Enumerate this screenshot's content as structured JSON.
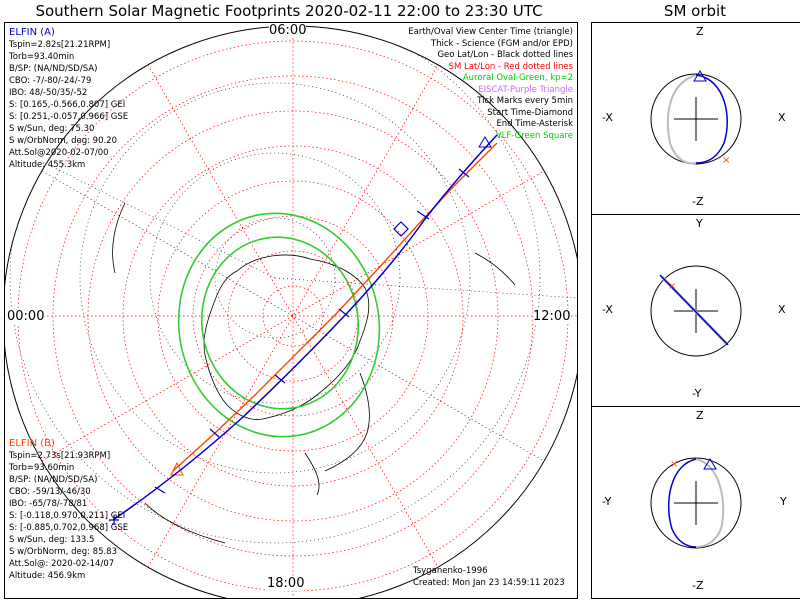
{
  "title": "Southern Solar Magnetic Footprints 2020-02-11 22:00 to 23:30 UTC",
  "sm_title": "SM orbit",
  "time_labels": {
    "top": "06:00",
    "left": "00:00",
    "right": "12:00",
    "bottom": "18:00"
  },
  "legend": [
    {
      "text": "Earth/Oval View Center Time (triangle)",
      "color": "#000000"
    },
    {
      "text": "Thick - Science (FGM and/or EPD)",
      "color": "#000000"
    },
    {
      "text": "Geo Lat/Lon - Black dotted lines",
      "color": "#000000"
    },
    {
      "text": "SM Lat/Lon - Red dotted lines",
      "color": "#ff0000"
    },
    {
      "text": "Auroral Oval-Green, kp=2",
      "color": "#00cc00"
    },
    {
      "text": "EISCAT-Purple Triangle",
      "color": "#cc66ff"
    },
    {
      "text": "Tick Marks every 5min",
      "color": "#000000"
    },
    {
      "text": "Start Time-Diamond",
      "color": "#000000"
    },
    {
      "text": "End Time-Asterisk",
      "color": "#000000"
    },
    {
      "text": "VLF-Green Square",
      "color": "#00cc00"
    }
  ],
  "elfin_a": {
    "name": "ELFIN (A)",
    "lines": [
      "Tspin=2.82s[21.21RPM]",
      "Torb=93.40min",
      "B/SP: (NA/ND/SD/SA)",
      "CBO: -7/-80/-24/-79",
      "IBO: 48/-50/35/-52",
      "S: [0.165,-0.566,0.807] GEI",
      "S: [0.251,-0.057,0.966] GSE",
      "S w/Sun, deg: 75.30",
      "S w/OrbNorm, deg: 90.20",
      "Att.Sol@2020-02-07/00",
      "Altitude: 455.3km"
    ]
  },
  "elfin_b": {
    "name": "ELFIN (B)",
    "lines": [
      "Tspin=2.73s[21.93RPM]",
      "Torb=93.60min",
      "B/SP: (NA/ND/SD/SA)",
      "CBO: -59/13/-46/30",
      "IBO: -65/78/-78/81",
      "S: [-0.118,0.970,0.211] GEI",
      "S: [-0.885,0.702,0.968] GSE",
      "S w/Sun, deg: 133.5",
      "S w/OrbNorm, deg: 85.83",
      "Att.Sol@: 2020-02-14/07",
      "Altitude: 456.9km"
    ]
  },
  "footer": {
    "model": "Tsyganenko-1996",
    "created": "Created: Mon Jan 23 14:59:11 2023"
  },
  "panels": [
    {
      "top": "Z",
      "bottom": "-Z",
      "left": "-X",
      "right": "X"
    },
    {
      "top": "Y",
      "bottom": "-Y",
      "left": "-X",
      "right": "X"
    },
    {
      "top": "Z",
      "bottom": "-Z",
      "left": "-Y",
      "right": "Y"
    }
  ],
  "colors": {
    "elfin_a": "#0000cc",
    "elfin_b": "#ff4400",
    "sm_grid": "#ff0000",
    "oval": "#33cc33"
  }
}
